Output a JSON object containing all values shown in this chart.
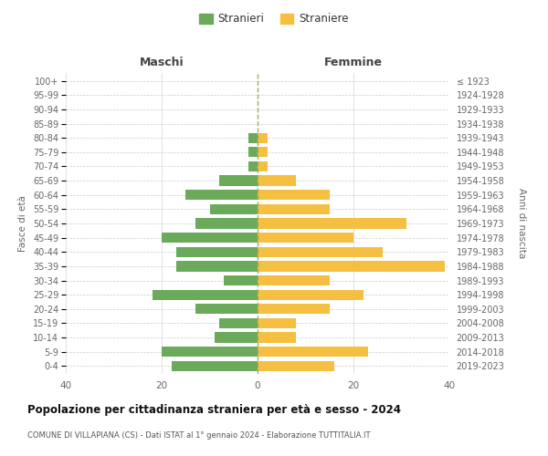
{
  "age_groups": [
    "0-4",
    "5-9",
    "10-14",
    "15-19",
    "20-24",
    "25-29",
    "30-34",
    "35-39",
    "40-44",
    "45-49",
    "50-54",
    "55-59",
    "60-64",
    "65-69",
    "70-74",
    "75-79",
    "80-84",
    "85-89",
    "90-94",
    "95-99",
    "100+"
  ],
  "birth_years": [
    "2019-2023",
    "2014-2018",
    "2009-2013",
    "2004-2008",
    "1999-2003",
    "1994-1998",
    "1989-1993",
    "1984-1988",
    "1979-1983",
    "1974-1978",
    "1969-1973",
    "1964-1968",
    "1959-1963",
    "1954-1958",
    "1949-1953",
    "1944-1948",
    "1939-1943",
    "1934-1938",
    "1929-1933",
    "1924-1928",
    "≤ 1923"
  ],
  "maschi": [
    18,
    20,
    9,
    8,
    13,
    22,
    7,
    17,
    17,
    20,
    13,
    10,
    15,
    8,
    2,
    2,
    2,
    0,
    0,
    0,
    0
  ],
  "femmine": [
    16,
    23,
    8,
    8,
    15,
    22,
    15,
    39,
    26,
    20,
    31,
    15,
    15,
    8,
    2,
    2,
    2,
    0,
    0,
    0,
    0
  ],
  "maschi_color": "#6aaa5a",
  "femmine_color": "#f5c042",
  "title": "Popolazione per cittadinanza straniera per età e sesso - 2024",
  "subtitle": "COMUNE DI VILLAPIANA (CS) - Dati ISTAT al 1° gennaio 2024 - Elaborazione TUTTITALIA.IT",
  "left_header": "Maschi",
  "right_header": "Femmine",
  "ylabel_left": "Fasce di età",
  "ylabel_right": "Anni di nascita",
  "legend_maschi": "Stranieri",
  "legend_femmine": "Straniere",
  "xlim": 40,
  "background_color": "#ffffff",
  "grid_color": "#cccccc",
  "dashed_line_color": "#aaa855"
}
